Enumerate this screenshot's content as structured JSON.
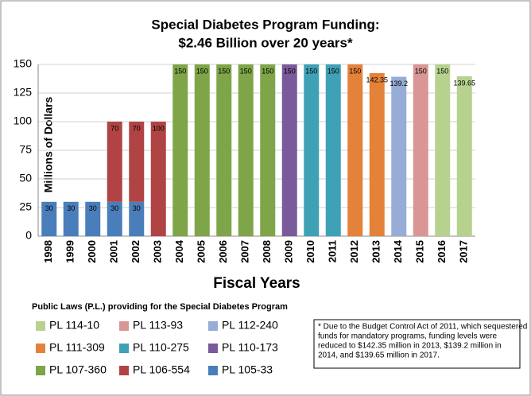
{
  "chart_data": {
    "type": "bar",
    "stacked": true,
    "title": [
      "Special Diabetes Program Funding:",
      "$2.46 Billion over 20 years*"
    ],
    "y_label": "Millions of Dollars",
    "x_label": "Fiscal Years",
    "legend_title": "Public Laws (P.L.) providing for the Special Diabetes Program",
    "note": [
      "* Due to the Budget Control Act of 2011,  which sequestered",
      "funds for mandatory programs, funding levels were",
      "reduced to $142.35  million in 2013, $139.2  million in",
      "2014,  and $139.65  million in 2017."
    ],
    "categories": [
      "1998",
      "1999",
      "2000",
      "2001",
      "2002",
      "2003",
      "2004",
      "2005",
      "2006",
      "2007",
      "2008",
      "2009",
      "2010",
      "2011",
      "2012",
      "2013",
      "2014",
      "2015",
      "2016",
      "2017"
    ],
    "ylim": [
      0,
      150
    ],
    "yticks": [
      0,
      25,
      50,
      75,
      100,
      125,
      150
    ],
    "grid": true,
    "series": [
      {
        "name": "PL 114-10",
        "color": "#b7d28f",
        "values": [
          null,
          null,
          null,
          null,
          null,
          null,
          null,
          null,
          null,
          null,
          null,
          null,
          null,
          null,
          null,
          null,
          null,
          null,
          150,
          139.65
        ]
      },
      {
        "name": "PL 113-93",
        "color": "#d99694",
        "values": [
          null,
          null,
          null,
          null,
          null,
          null,
          null,
          null,
          null,
          null,
          null,
          null,
          null,
          null,
          null,
          null,
          null,
          150,
          null,
          null
        ]
      },
      {
        "name": "PL 112-240",
        "color": "#97acd6",
        "values": [
          null,
          null,
          null,
          null,
          null,
          null,
          null,
          null,
          null,
          null,
          null,
          null,
          null,
          null,
          null,
          null,
          139.2,
          null,
          null,
          null
        ]
      },
      {
        "name": "PL 111-309",
        "color": "#e5823a",
        "values": [
          null,
          null,
          null,
          null,
          null,
          null,
          null,
          null,
          null,
          null,
          null,
          null,
          null,
          null,
          150,
          142.35,
          null,
          null,
          null,
          null
        ]
      },
      {
        "name": "PL 110-275",
        "color": "#3fa1b5",
        "values": [
          null,
          null,
          null,
          null,
          null,
          null,
          null,
          null,
          null,
          null,
          null,
          null,
          150,
          150,
          null,
          null,
          null,
          null,
          null,
          null
        ]
      },
      {
        "name": "PL 110-173",
        "color": "#7a5a9a",
        "values": [
          null,
          null,
          null,
          null,
          null,
          null,
          null,
          null,
          null,
          null,
          null,
          150,
          null,
          null,
          null,
          null,
          null,
          null,
          null,
          null
        ]
      },
      {
        "name": "PL 107-360",
        "color": "#7ea547",
        "values": [
          null,
          null,
          null,
          null,
          null,
          null,
          150,
          150,
          150,
          150,
          150,
          null,
          null,
          null,
          null,
          null,
          null,
          null,
          null,
          null
        ]
      },
      {
        "name": "PL 106-554",
        "color": "#b04444",
        "values": [
          null,
          null,
          null,
          70,
          70,
          100,
          null,
          null,
          null,
          null,
          null,
          null,
          null,
          null,
          null,
          null,
          null,
          null,
          null,
          null
        ]
      },
      {
        "name": "PL 105-33",
        "color": "#4a7ebb",
        "values": [
          30,
          30,
          30,
          30,
          30,
          null,
          null,
          null,
          null,
          null,
          null,
          null,
          null,
          null,
          null,
          null,
          null,
          null,
          null,
          null
        ]
      }
    ]
  }
}
